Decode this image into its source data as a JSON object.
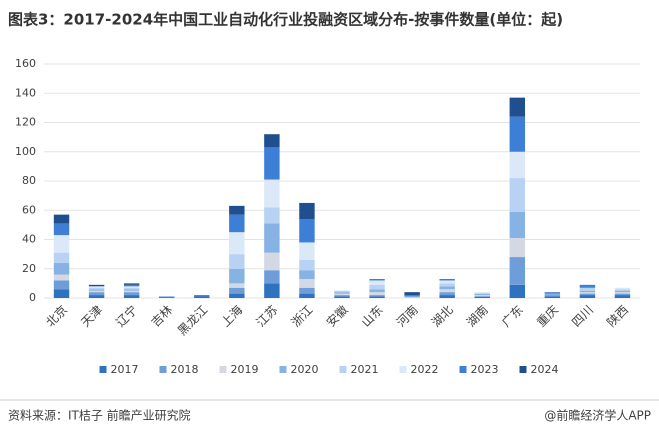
{
  "chart_data": {
    "type": "stacked_bar",
    "title": "图表3：2017-2024年中国工业自动化行业投融资区域分布-按事件数量(单位：起)",
    "categories": [
      "北京",
      "天津",
      "辽宁",
      "吉林",
      "黑龙江",
      "上海",
      "江苏",
      "浙江",
      "安徽",
      "山东",
      "河南",
      "湖北",
      "湖南",
      "广东",
      "重庆",
      "四川",
      "陕西"
    ],
    "series": [
      {
        "name": "2017",
        "color": "#2f72c0",
        "values": [
          6,
          2,
          2,
          0,
          1,
          3,
          10,
          3,
          1,
          1,
          0,
          2,
          1,
          9,
          1,
          2,
          2
        ]
      },
      {
        "name": "2018",
        "color": "#6d9ed8",
        "values": [
          6,
          2,
          2,
          0,
          0,
          4,
          9,
          4,
          1,
          1,
          0,
          2,
          0,
          19,
          1,
          1,
          1
        ]
      },
      {
        "name": "2019",
        "color": "#d3d8e2",
        "values": [
          4,
          1,
          1,
          0,
          0,
          3,
          12,
          6,
          1,
          2,
          0,
          2,
          1,
          13,
          0,
          1,
          1
        ]
      },
      {
        "name": "2020",
        "color": "#86b3e4",
        "values": [
          8,
          1,
          1,
          0,
          0,
          10,
          20,
          6,
          1,
          2,
          0,
          2,
          1,
          18,
          1,
          1,
          1
        ]
      },
      {
        "name": "2021",
        "color": "#b7d2f2",
        "values": [
          7,
          1,
          1,
          0,
          0,
          10,
          11,
          7,
          1,
          3,
          1,
          2,
          0,
          23,
          0,
          2,
          1
        ]
      },
      {
        "name": "2022",
        "color": "#dbe8f8",
        "values": [
          12,
          1,
          1,
          0,
          0,
          15,
          19,
          12,
          0,
          3,
          0,
          2,
          1,
          18,
          0,
          0,
          1
        ]
      },
      {
        "name": "2023",
        "color": "#3d7fd6",
        "values": [
          8,
          0,
          1,
          1,
          1,
          12,
          22,
          16,
          0,
          1,
          1,
          1,
          0,
          24,
          1,
          2,
          0
        ]
      },
      {
        "name": "2024",
        "color": "#1f4f8f",
        "values": [
          6,
          1,
          1,
          0,
          0,
          6,
          9,
          11,
          0,
          0,
          2,
          0,
          0,
          13,
          0,
          0,
          0
        ]
      }
    ],
    "ylim": [
      0,
      160
    ],
    "yticks": [
      0,
      20,
      40,
      60,
      80,
      100,
      120,
      140,
      160
    ],
    "grid": true,
    "source": "资料来源：IT桔子 前瞻产业研究院",
    "credit": "@前瞻经济学人APP"
  }
}
